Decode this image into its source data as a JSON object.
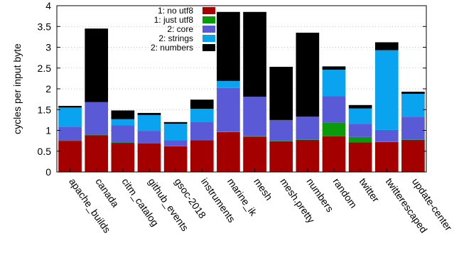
{
  "chart_data": {
    "type": "bar",
    "stacked": true,
    "title": "",
    "xlabel": "",
    "ylabel": "cycles per input byte",
    "ylim": [
      0,
      4
    ],
    "yticks": [
      0,
      0.5,
      1,
      1.5,
      2,
      2.5,
      3,
      3.5,
      4
    ],
    "ytick_labels": [
      "0",
      "0.5",
      "1",
      "1.5",
      "2",
      "2.5",
      "3",
      "3.5",
      "4"
    ],
    "grid": true,
    "legend_position": "top-center",
    "categories": [
      "apache_builds",
      "canada",
      "citm_catalog",
      "github_events",
      "gsoc-2018",
      "instruments",
      "marine_ik",
      "mesh",
      "mesh.pretty",
      "numbers",
      "random",
      "twitter",
      "twitterescaped",
      "update-center"
    ],
    "series": [
      {
        "name": "1: no utf8",
        "color": "#a50000",
        "values": [
          0.75,
          0.88,
          0.7,
          0.69,
          0.62,
          0.76,
          0.96,
          0.85,
          0.74,
          0.77,
          0.86,
          0.71,
          0.72,
          0.77
        ]
      },
      {
        "name": "1: just utf8",
        "color": "#0a9a0a",
        "values": [
          0.01,
          0.01,
          0.01,
          0.01,
          0.01,
          0.01,
          0.01,
          0.01,
          0.01,
          0.01,
          0.33,
          0.13,
          0.01,
          0.01
        ]
      },
      {
        "name": "2: core",
        "color": "#5a5ad6",
        "values": [
          0.33,
          0.79,
          0.41,
          0.29,
          0.13,
          0.44,
          1.05,
          0.95,
          0.5,
          0.55,
          0.63,
          0.32,
          0.28,
          0.55
        ]
      },
      {
        "name": "2: strings",
        "color": "#0aa3f0",
        "values": [
          0.46,
          0.0,
          0.15,
          0.38,
          0.4,
          0.31,
          0.17,
          0.0,
          0.0,
          0.0,
          0.64,
          0.37,
          1.92,
          0.55
        ]
      },
      {
        "name": "2: numbers",
        "color": "#000000",
        "values": [
          0.04,
          1.77,
          0.21,
          0.05,
          0.04,
          0.22,
          1.66,
          2.04,
          1.28,
          2.02,
          0.08,
          0.08,
          0.19,
          0.05
        ]
      }
    ]
  }
}
